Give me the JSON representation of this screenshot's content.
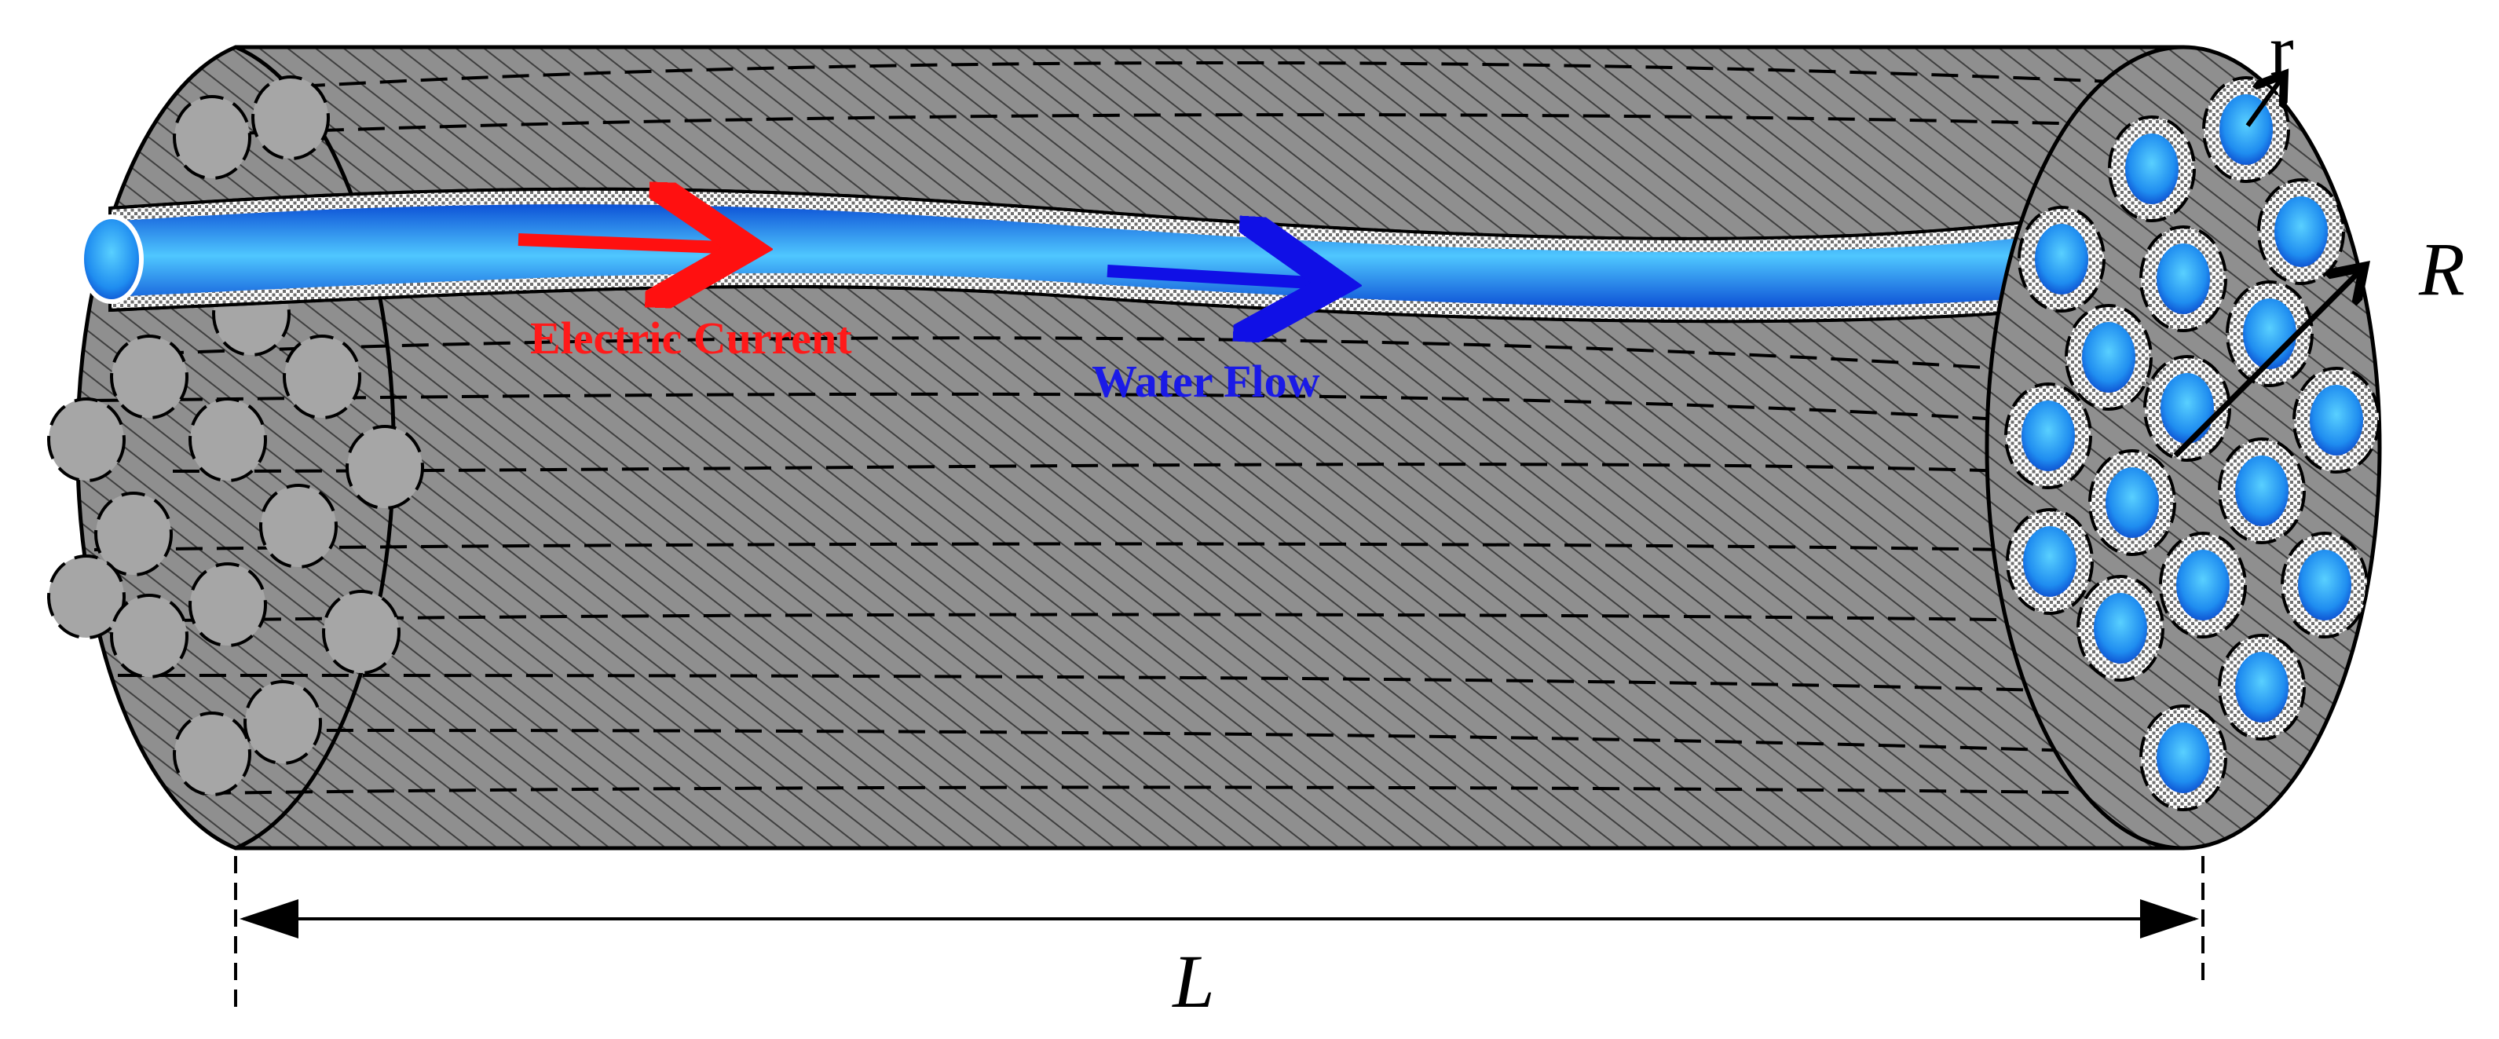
{
  "labels": {
    "current": "Electric Current",
    "water": "Water Flow",
    "r": "r",
    "R": "R",
    "L": "L"
  },
  "colors": {
    "body": "#8f8f8f",
    "hatch": "#3f3f3f",
    "outline": "#000000",
    "left_cell": "#a6a6a6",
    "water_core": "#4fc3ff",
    "water_edge": "#0f57d8",
    "current_arrow": "#ff1010",
    "current_text": "#ff1a1a",
    "water_arrow": "#1010e6",
    "water_text": "#1a1ae6"
  }
}
